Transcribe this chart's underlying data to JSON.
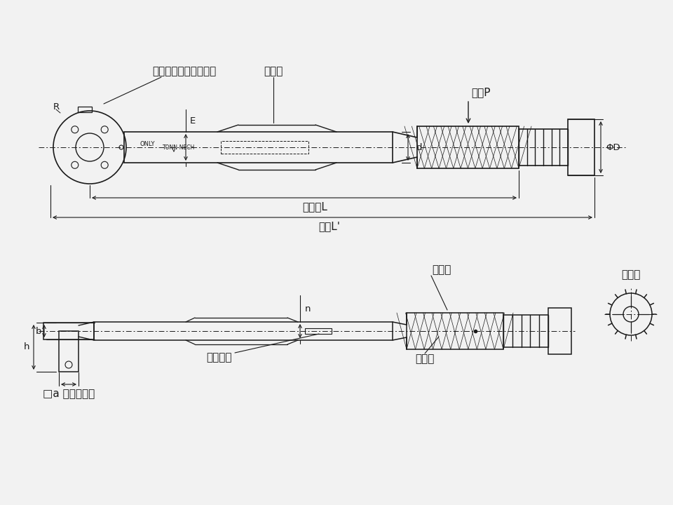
{
  "bg_color": "#f2f2f2",
  "line_color": "#1a1a1a",
  "labels": {
    "ratchet_lever": "ラチェット切替レバー",
    "model_name": "型式名",
    "hand_force": "手力P",
    "effective_length": "有効長L",
    "total_length": "全長L'",
    "sub_scale": "副目盛",
    "main_scale": "主目盛",
    "serial_number": "製造番号",
    "square_drive": "□a 角ドライブ",
    "locker": "ロッカ",
    "dim_E": "E",
    "dim_d": "d",
    "dim_D": "ΦD",
    "dim_h": "h",
    "dim_b": "b",
    "dim_n": "n",
    "dim_R": "R"
  },
  "font_size": 11,
  "small_font": 9.5
}
